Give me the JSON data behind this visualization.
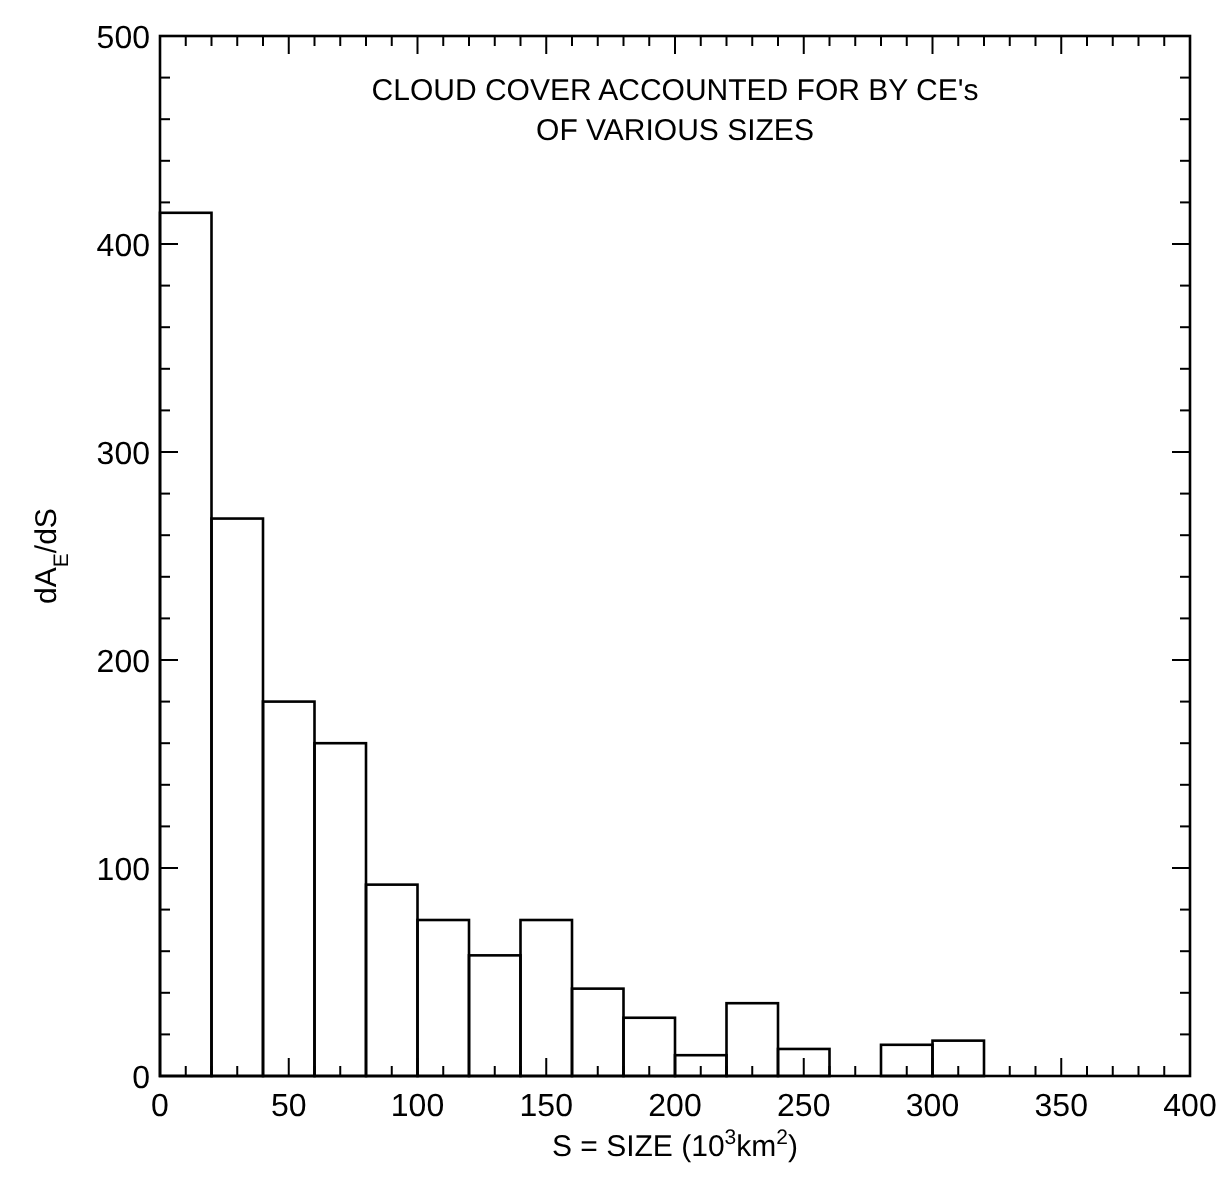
{
  "chart_data": {
    "type": "histogram",
    "title": "CLOUD COVER ACCOUNTED FOR BY CE's\nOF VARIOUS SIZES",
    "xlabel": "S = SIZE (10$^{3}$km$^{2}$)",
    "ylabel": "dA$_{E}$/dS",
    "bins": [
      0,
      20,
      40,
      60,
      80,
      100,
      120,
      140,
      160,
      180,
      200,
      220,
      240,
      260,
      280,
      300,
      320
    ],
    "values": [
      415,
      268,
      180,
      160,
      92,
      75,
      58,
      75,
      42,
      28,
      10,
      35,
      13,
      0,
      15,
      17
    ],
    "color": "#000000",
    "xlim": [
      0,
      400
    ],
    "ylim": [
      0,
      500
    ],
    "xticks": [
      0,
      {
        "value": 10,
        "label": null
      },
      {
        "value": 20,
        "label": null
      },
      {
        "value": 30,
        "label": null
      },
      {
        "value": 40,
        "label": null
      },
      50,
      {
        "value": 60,
        "label": null
      },
      {
        "value": 70,
        "label": null
      },
      {
        "value": 80,
        "label": null
      },
      {
        "value": 90,
        "label": null
      },
      100,
      {
        "value": 110,
        "label": null
      },
      {
        "value": 120,
        "label": null
      },
      {
        "value": 130,
        "label": null
      },
      {
        "value": 140,
        "label": null
      },
      150,
      {
        "value": 160,
        "label": null
      },
      {
        "value": 170,
        "label": null
      },
      {
        "value": 180,
        "label": null
      },
      {
        "value": 190,
        "label": null
      },
      200,
      {
        "value": 210,
        "label": null
      },
      {
        "value": 220,
        "label": null
      },
      {
        "value": 230,
        "label": null
      },
      {
        "value": 240,
        "label": null
      },
      250,
      {
        "value": 260,
        "label": null
      },
      {
        "value": 270,
        "label": null
      },
      {
        "value": 280,
        "label": null
      },
      {
        "value": 290,
        "label": null
      },
      300,
      {
        "value": 310,
        "label": null
      },
      {
        "value": 320,
        "label": null
      },
      {
        "value": 330,
        "label": null
      },
      {
        "value": 340,
        "label": null
      },
      350,
      {
        "value": 360,
        "label": null
      },
      {
        "value": 370,
        "label": null
      },
      {
        "value": 380,
        "label": null
      },
      {
        "value": 390,
        "label": null
      },
      400
    ],
    "yticks": [
      0,
      {
        "value": 20,
        "label": null
      },
      {
        "value": 40,
        "label": null
      },
      {
        "value": 60,
        "label": null
      },
      {
        "value": 80,
        "label": null
      },
      100,
      {
        "value": 120,
        "label": null
      },
      {
        "value": 140,
        "label": null
      },
      {
        "value": 160,
        "label": null
      },
      {
        "value": 180,
        "label": null
      },
      200,
      {
        "value": 220,
        "label": null
      },
      {
        "value": 240,
        "label": null
      },
      {
        "value": 260,
        "label": null
      },
      {
        "value": 280,
        "label": null
      },
      300,
      {
        "value": 320,
        "label": null
      },
      {
        "value": 340,
        "label": null
      },
      {
        "value": 360,
        "label": null
      },
      {
        "value": 380,
        "label": null
      },
      400,
      {
        "value": 420,
        "label": null
      },
      {
        "value": 440,
        "label": null
      },
      {
        "value": 460,
        "label": null
      },
      {
        "value": 480,
        "label": null
      },
      500
    ],
    "grid": false
  }
}
